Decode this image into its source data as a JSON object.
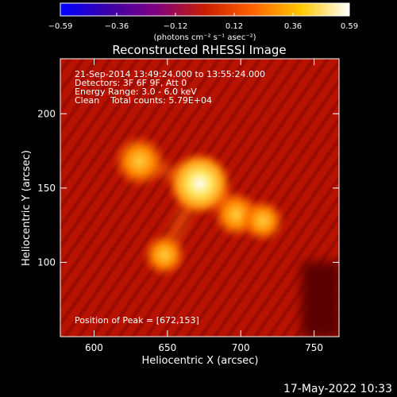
{
  "chart_data": {
    "type": "heatmap",
    "title": "Reconstructed RHESSI Image",
    "xlabel": "Heliocentric X (arcsec)",
    "ylabel": "Heliocentric Y (arcsec)",
    "xlim": [
      577,
      767
    ],
    "ylim": [
      50,
      237
    ],
    "x_ticks": [
      "600",
      "650",
      "700",
      "750"
    ],
    "y_ticks": [
      "100",
      "150",
      "200"
    ],
    "x_tick_values": [
      600,
      650,
      700,
      750
    ],
    "y_tick_values": [
      100,
      150,
      200
    ],
    "colorbar": {
      "min": -0.59,
      "max": 0.59,
      "ticks": [
        "−0.59",
        "−0.36",
        "−0.12",
        "0.12",
        "0.36",
        "0.59"
      ],
      "tick_values": [
        -0.59,
        -0.36,
        -0.12,
        0.12,
        0.36,
        0.59
      ],
      "label": "(photons cm⁻² s⁻¹ asec⁻²)",
      "colors": [
        "#0000ff",
        "#3c00a8",
        "#800080",
        "#c81e00",
        "#ff6400",
        "#ffc800",
        "#ffffff"
      ]
    },
    "annotations": [
      "21-Sep-2014 13:49:24.000 to 13:55:24.000",
      "Detectors: 3F 6F 9F, Att 0",
      "Energy Range: 3.0 - 6.0 keV",
      "Clean    Total counts: 5.79E+04"
    ],
    "peak_label": "Position of Peak = [672,153]",
    "peak": [
      672,
      153
    ],
    "sources": [
      {
        "x": 672,
        "y": 153,
        "level": 1.0
      },
      {
        "x": 631,
        "y": 168,
        "level": 0.72
      },
      {
        "x": 697,
        "y": 132,
        "level": 0.58
      },
      {
        "x": 715,
        "y": 128,
        "level": 0.5
      },
      {
        "x": 648,
        "y": 105,
        "level": 0.5
      }
    ]
  },
  "timestamp": "17-May-2022 10:33"
}
